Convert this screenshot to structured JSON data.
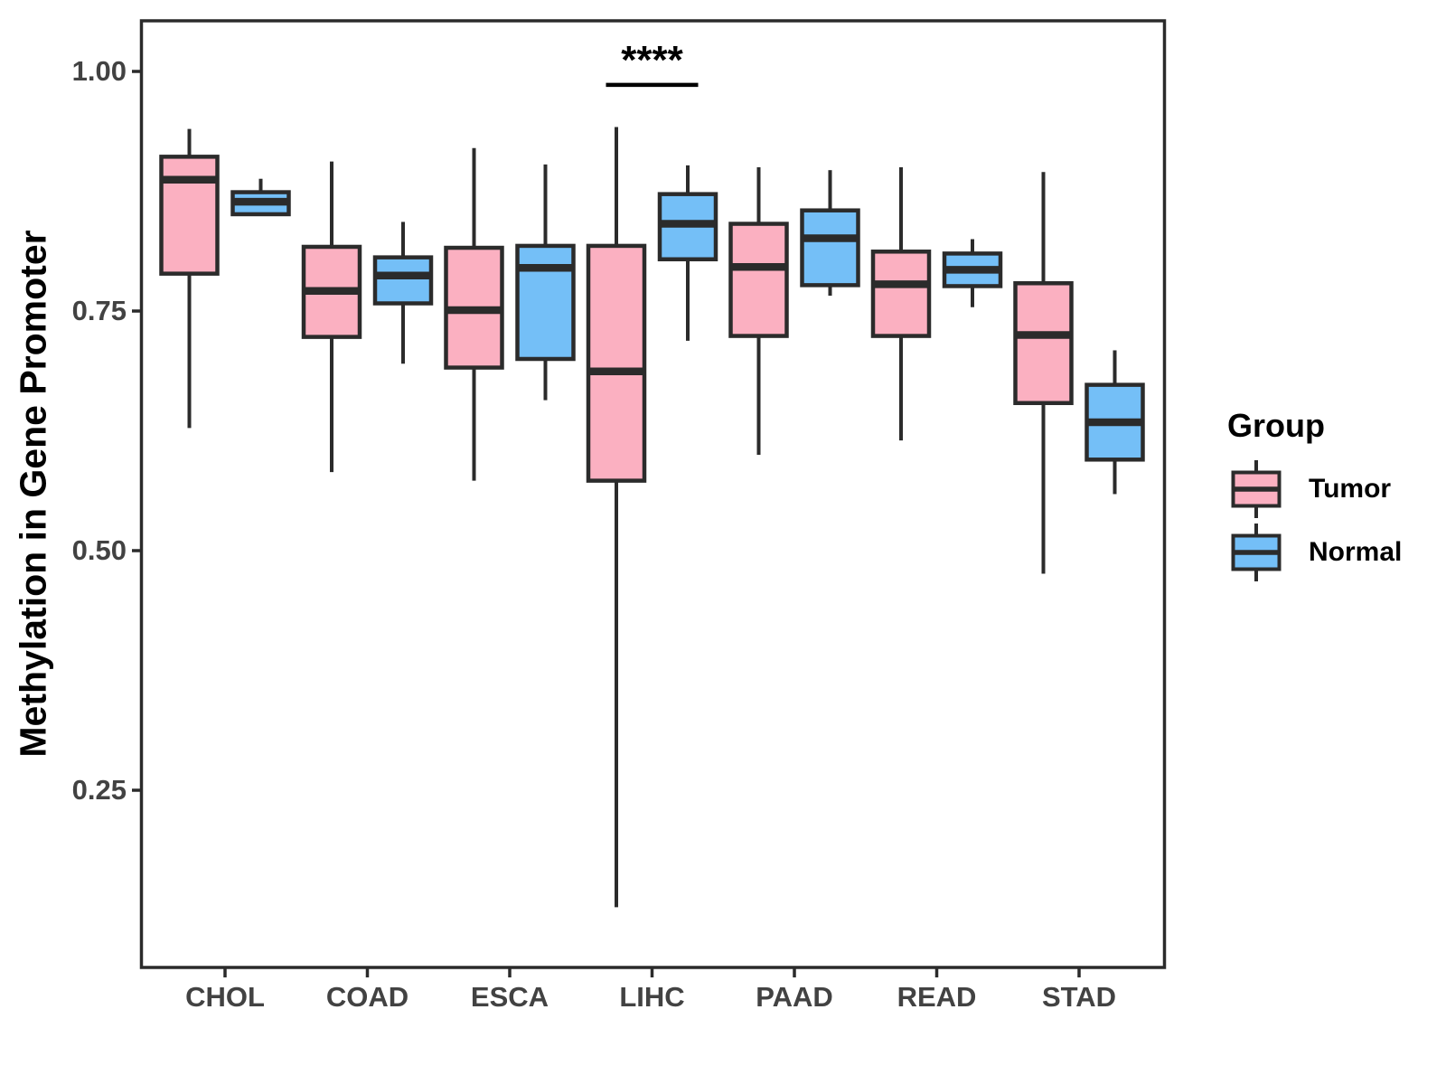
{
  "y_axis": {
    "label": "Methylation in Gene Promoter",
    "tick_labels": [
      "1.00",
      "0.75",
      "0.50",
      "0.25"
    ],
    "tick_values": [
      1.0,
      0.75,
      0.5,
      0.25
    ]
  },
  "x_axis": {
    "categories": [
      "CHOL",
      "COAD",
      "ESCA",
      "LIHC",
      "PAAD",
      "READ",
      "STAD"
    ]
  },
  "legend": {
    "title": "Group",
    "items": [
      {
        "label": "Tumor",
        "color": "#FBB0C1"
      },
      {
        "label": "Normal",
        "color": "#74BFF7"
      }
    ]
  },
  "annotation": {
    "text": "****",
    "category": "LIHC"
  },
  "colors": {
    "tumor_fill": "#FBB0C1",
    "normal_fill": "#74BFF7",
    "line": "#2B2B2B",
    "axis_text": "#424242"
  },
  "chart_data": {
    "type": "boxplot",
    "title": "",
    "xlabel": "",
    "ylabel": "Methylation in Gene Promoter",
    "ylim": [
      0.065,
      1.05
    ],
    "grid": false,
    "legend_position": "right",
    "categories": [
      "CHOL",
      "COAD",
      "ESCA",
      "LIHC",
      "PAAD",
      "READ",
      "STAD"
    ],
    "series": [
      {
        "name": "Tumor",
        "color": "#FBB0C1",
        "boxes": [
          {
            "category": "CHOL",
            "min": 0.628,
            "q1": 0.789,
            "median": 0.887,
            "q3": 0.911,
            "max": 0.94
          },
          {
            "category": "COAD",
            "min": 0.582,
            "q1": 0.723,
            "median": 0.771,
            "q3": 0.817,
            "max": 0.906
          },
          {
            "category": "ESCA",
            "min": 0.573,
            "q1": 0.691,
            "median": 0.751,
            "q3": 0.816,
            "max": 0.92
          },
          {
            "category": "LIHC",
            "min": 0.128,
            "q1": 0.573,
            "median": 0.687,
            "q3": 0.818,
            "max": 0.942
          },
          {
            "category": "PAAD",
            "min": 0.6,
            "q1": 0.724,
            "median": 0.796,
            "q3": 0.841,
            "max": 0.9
          },
          {
            "category": "READ",
            "min": 0.615,
            "q1": 0.724,
            "median": 0.778,
            "q3": 0.812,
            "max": 0.9
          },
          {
            "category": "STAD",
            "min": 0.476,
            "q1": 0.654,
            "median": 0.725,
            "q3": 0.779,
            "max": 0.895
          }
        ]
      },
      {
        "name": "Normal",
        "color": "#74BFF7",
        "boxes": [
          {
            "category": "CHOL",
            "min": 0.851,
            "q1": 0.851,
            "median": 0.864,
            "q3": 0.874,
            "max": 0.888
          },
          {
            "category": "COAD",
            "min": 0.695,
            "q1": 0.758,
            "median": 0.787,
            "q3": 0.806,
            "max": 0.843
          },
          {
            "category": "ESCA",
            "min": 0.657,
            "q1": 0.7,
            "median": 0.795,
            "q3": 0.818,
            "max": 0.903
          },
          {
            "category": "LIHC",
            "min": 0.719,
            "q1": 0.804,
            "median": 0.841,
            "q3": 0.872,
            "max": 0.902
          },
          {
            "category": "PAAD",
            "min": 0.766,
            "q1": 0.777,
            "median": 0.826,
            "q3": 0.855,
            "max": 0.897
          },
          {
            "category": "READ",
            "min": 0.754,
            "q1": 0.776,
            "median": 0.793,
            "q3": 0.81,
            "max": 0.825
          },
          {
            "category": "STAD",
            "min": 0.559,
            "q1": 0.595,
            "median": 0.634,
            "q3": 0.673,
            "max": 0.709
          }
        ]
      }
    ],
    "significance": {
      "label": "****",
      "category": "LIHC",
      "line_y": 0.986,
      "text_y": 1.005
    }
  }
}
